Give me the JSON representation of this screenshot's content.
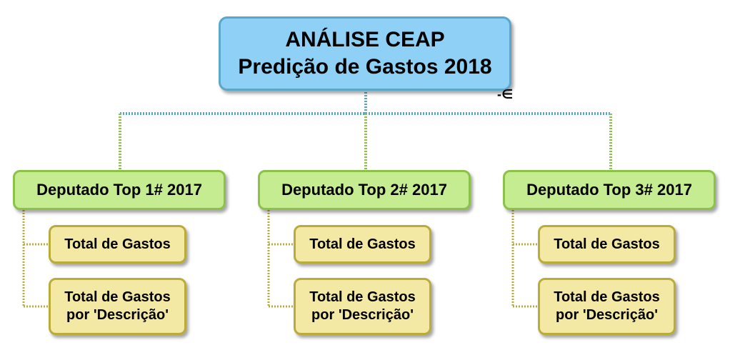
{
  "root": {
    "title_line1": "ANÁLISE CEAP",
    "title_line2": "Predição de Gastos 2018",
    "collapse_symbol": "-∈"
  },
  "deputies": [
    {
      "label": "Deputado Top 1# 2017",
      "children": [
        {
          "line1": "Total de Gastos"
        },
        {
          "line1": "Total de Gastos",
          "line2": "por 'Descrição'"
        }
      ]
    },
    {
      "label": "Deputado Top 2# 2017",
      "children": [
        {
          "line1": "Total de Gastos"
        },
        {
          "line1": "Total de Gastos",
          "line2": "por 'Descrição'"
        }
      ]
    },
    {
      "label": "Deputado Top 3# 2017",
      "children": [
        {
          "line1": "Total de Gastos"
        },
        {
          "line1": "Total de Gastos",
          "line2": "por 'Descrição'"
        }
      ]
    }
  ],
  "colors": {
    "root_fill": "#8fd0f6",
    "root_border": "#5aa7c9",
    "deputy_fill": "#c6ec92",
    "deputy_border": "#8cc24a",
    "child_fill": "#f3e9a4",
    "child_border": "#b9ac3b",
    "connector_root": "#5aa7c9",
    "connector_deputy": "#8cc24a",
    "connector_child": "#b9ac3b"
  }
}
